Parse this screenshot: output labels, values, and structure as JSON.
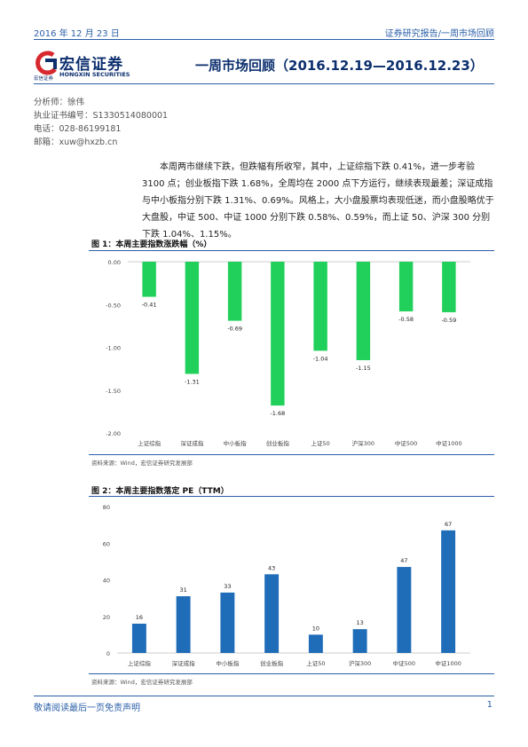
{
  "header": {
    "date": "2016 年 12 月 23 日",
    "doc_type": "证券研究报告/一周市场回顾"
  },
  "logo": {
    "cn_name": "宏信证券",
    "en_name": "HONGXIN SECURITIES",
    "small_cn": "宏信证券"
  },
  "title": "一周市场回顾（2016.12.19—2016.12.23）",
  "meta": {
    "analyst": "分析师：徐伟",
    "license": "执业证书编号：S1330514080001",
    "phone": "电话：028-86199181",
    "email": "邮箱：xuw@hxzb.cn"
  },
  "summary": "本周两市继续下跌，但跌幅有所收窄，其中，上证综指下跌 0.41%，进一步考验 3100 点；创业板指下跌 1.68%，全周均在 2000 点下方运行，继续表现最差；深证成指与中小板指分别下跌 1.31%、0.69%。风格上，大小盘股票均表现低迷，而小盘股略优于大盘股，中证 500、中证 1000 分别下跌 0.58%、0.59%，而上证 50、沪深 300 分别下跌 1.04%、1.15%。",
  "figure1": {
    "caption": "图 1：本周主要指数涨跌幅（%）",
    "source": "资料来源：Wind，宏信证券研究发展部"
  },
  "figure2": {
    "caption": "图 2：本周主要指数落定 PE（TTM）",
    "source": "资料来源：Wind，宏信证券研究发展部"
  },
  "chart_data": [
    {
      "type": "bar",
      "title": "本周主要指数涨跌幅（%）",
      "categories": [
        "上证综指",
        "深证成指",
        "中小板指",
        "创业板指",
        "上证50",
        "沪深300",
        "中证500",
        "中证1000"
      ],
      "values": [
        -0.41,
        -1.31,
        -0.69,
        -1.68,
        -1.04,
        -1.15,
        -0.58,
        -0.59
      ],
      "value_labels": [
        "-0.41",
        "-1.31",
        "-0.69",
        "-1.68",
        "-1.04",
        "-1.15",
        "-0.58",
        "-0.59"
      ],
      "ylim": [
        -2.0,
        0.0
      ],
      "yticks": [
        "0.00",
        "-0.50",
        "-1.00",
        "-1.50",
        "-2.00"
      ],
      "ytick_values": [
        0,
        -0.5,
        -1.0,
        -1.5,
        -2.0
      ],
      "grid": false,
      "color": "#21d05a"
    },
    {
      "type": "bar",
      "title": "本周主要指数落定 PE（TTM）",
      "categories": [
        "上证综指",
        "深证成指",
        "中小板指",
        "创业板指",
        "上证50",
        "沪深300",
        "中证500",
        "中证1000"
      ],
      "values": [
        16,
        31,
        33,
        43,
        10,
        13,
        47,
        67
      ],
      "value_labels": [
        "16",
        "31",
        "33",
        "43",
        "10",
        "13",
        "47",
        "67"
      ],
      "ylim": [
        0,
        80
      ],
      "yticks": [
        "80",
        "60",
        "40",
        "20",
        "0"
      ],
      "ytick_values": [
        80,
        60,
        40,
        20,
        0
      ],
      "grid": false,
      "color": "#1f6db8"
    }
  ],
  "footer": {
    "disclaimer": "敬请阅读最后一页免责声明",
    "page": "1"
  }
}
